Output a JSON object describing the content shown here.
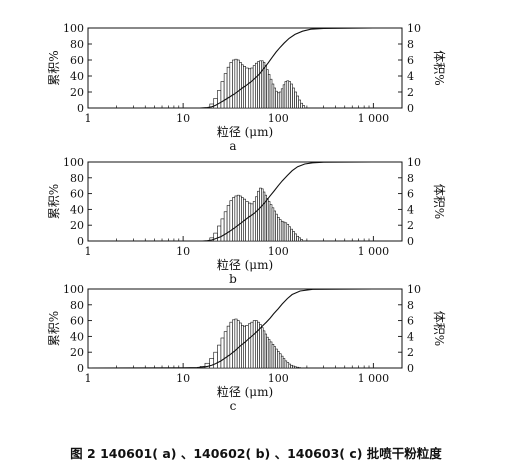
{
  "caption": "图 2 140601( a) 、140602( b) 、140603( c) 批喷干粉粒度",
  "chart_data": [
    {
      "type": "bar",
      "panel_label": "a",
      "xlabel": "粒径 (μm)",
      "ylabel_left": "累积%",
      "ylabel_right": "体积%",
      "x_scale": "log",
      "xlim": [
        1,
        2000
      ],
      "ylim_left": [
        0,
        100
      ],
      "ylim_right": [
        0,
        10
      ],
      "x_ticks": [
        1,
        10,
        100,
        1000
      ],
      "x_tick_labels": [
        "1",
        "10",
        "100",
        "1 000"
      ],
      "y_ticks_left": [
        "0",
        "20",
        "40",
        "60",
        "80",
        "100"
      ],
      "y_ticks_right": [
        "0",
        "2",
        "4",
        "6",
        "8",
        "10"
      ],
      "grid": false,
      "series": [
        {
          "kind": "bars",
          "axis": "right",
          "x": [
            20,
            22,
            24,
            26,
            28,
            30,
            32,
            34,
            36,
            38,
            40,
            42,
            44,
            47,
            50,
            53,
            56,
            59,
            62,
            65,
            68,
            71,
            74,
            77,
            80,
            84,
            88,
            92,
            96,
            100,
            105,
            110,
            115,
            120,
            126,
            132,
            138,
            145,
            152,
            160,
            168,
            176,
            185
          ],
          "values": [
            0.5,
            1.2,
            2.2,
            3.3,
            4.3,
            5.1,
            5.7,
            6.0,
            6.1,
            6.0,
            5.7,
            5.4,
            5.2,
            5.0,
            4.9,
            5.0,
            5.3,
            5.6,
            5.8,
            5.9,
            5.9,
            5.7,
            5.3,
            4.8,
            4.2,
            3.6,
            3.0,
            2.5,
            2.1,
            1.9,
            2.0,
            2.4,
            2.9,
            3.3,
            3.4,
            3.3,
            3.0,
            2.5,
            2.0,
            1.5,
            1.0,
            0.6,
            0.3
          ]
        },
        {
          "kind": "line",
          "axis": "left",
          "x": [
            1,
            15,
            18,
            20,
            22,
            24,
            27,
            30,
            34,
            38,
            42,
            47,
            52,
            58,
            64,
            70,
            78,
            86,
            95,
            105,
            115,
            130,
            150,
            180,
            220,
            300,
            1000,
            1500
          ],
          "values": [
            0,
            0,
            0.5,
            1.5,
            3.5,
            6,
            9.5,
            13,
            17,
            21,
            25,
            29,
            33,
            38,
            43,
            49,
            56,
            63,
            70,
            76,
            81,
            87,
            92,
            96,
            98.5,
            99.5,
            100,
            100
          ]
        }
      ]
    },
    {
      "type": "bar",
      "panel_label": "b",
      "xlabel": "粒径 (μm)",
      "ylabel_left": "累积%",
      "ylabel_right": "体积%",
      "x_scale": "log",
      "xlim": [
        1,
        2000
      ],
      "ylim_left": [
        0,
        100
      ],
      "ylim_right": [
        0,
        10
      ],
      "x_ticks": [
        1,
        10,
        100,
        1000
      ],
      "x_tick_labels": [
        "1",
        "10",
        "100",
        "1 000"
      ],
      "y_ticks_left": [
        "0",
        "20",
        "40",
        "60",
        "80",
        "100"
      ],
      "y_ticks_right": [
        "0",
        "2",
        "4",
        "6",
        "8",
        "10"
      ],
      "grid": false,
      "series": [
        {
          "kind": "bars",
          "axis": "right",
          "x": [
            20,
            22,
            24,
            26,
            28,
            30,
            32,
            34,
            36,
            38,
            40,
            42,
            44,
            47,
            50,
            53,
            56,
            59,
            62,
            65,
            68,
            71,
            74,
            77,
            80,
            84,
            88,
            92,
            96,
            100,
            105,
            110,
            115,
            120,
            126,
            132,
            138,
            145,
            152,
            160,
            168,
            176
          ],
          "values": [
            0.4,
            1.0,
            1.9,
            2.8,
            3.7,
            4.5,
            5.1,
            5.5,
            5.7,
            5.8,
            5.7,
            5.5,
            5.3,
            5.0,
            4.8,
            4.7,
            5.0,
            5.6,
            6.3,
            6.7,
            6.6,
            6.2,
            5.8,
            5.4,
            5.0,
            4.6,
            4.2,
            3.8,
            3.4,
            3.0,
            2.7,
            2.5,
            2.4,
            2.3,
            2.1,
            1.8,
            1.5,
            1.2,
            0.9,
            0.6,
            0.4,
            0.2
          ]
        },
        {
          "kind": "line",
          "axis": "left",
          "x": [
            1,
            16,
            18,
            20,
            22,
            25,
            28,
            32,
            36,
            40,
            45,
            50,
            56,
            62,
            68,
            75,
            82,
            90,
            100,
            110,
            125,
            140,
            160,
            190,
            230,
            300,
            1000,
            1500
          ],
          "values": [
            0,
            0,
            0.4,
            1.2,
            3,
            5.5,
            9,
            13.5,
            18,
            22,
            27,
            31,
            35,
            40,
            45,
            51,
            57,
            63,
            70,
            76,
            83,
            89,
            94,
            97.5,
            99,
            99.8,
            100,
            100
          ]
        }
      ]
    },
    {
      "type": "bar",
      "panel_label": "c",
      "xlabel": "粒径 (μm)",
      "ylabel_left": "累积%",
      "ylabel_right": "体积%",
      "x_scale": "log",
      "xlim": [
        1,
        2000
      ],
      "ylim_left": [
        0,
        100
      ],
      "ylim_right": [
        0,
        10
      ],
      "x_ticks": [
        1,
        10,
        100,
        1000
      ],
      "x_tick_labels": [
        "1",
        "10",
        "100",
        "1 000"
      ],
      "y_ticks_left": [
        "0",
        "20",
        "40",
        "60",
        "80",
        "100"
      ],
      "y_ticks_right": [
        "0",
        "2",
        "4",
        "6",
        "8",
        "10"
      ],
      "grid": false,
      "series": [
        {
          "kind": "bars",
          "axis": "right",
          "x": [
            16,
            18,
            20,
            22,
            24,
            26,
            28,
            30,
            32,
            34,
            36,
            38,
            40,
            42,
            44,
            47,
            50,
            53,
            56,
            59,
            62,
            65,
            68,
            71,
            74,
            77,
            80,
            84,
            88,
            92,
            96,
            100,
            105,
            110,
            115,
            120,
            126,
            132,
            138,
            145,
            152,
            160,
            168,
            176
          ],
          "values": [
            0.2,
            0.6,
            1.2,
            2.0,
            2.9,
            3.8,
            4.6,
            5.3,
            5.8,
            6.1,
            6.2,
            6.0,
            5.7,
            5.4,
            5.3,
            5.4,
            5.6,
            5.8,
            6.0,
            6.0,
            5.8,
            5.5,
            5.1,
            4.7,
            4.3,
            3.9,
            3.6,
            3.3,
            3.0,
            2.7,
            2.4,
            2.1,
            1.8,
            1.5,
            1.2,
            0.9,
            0.7,
            0.5,
            0.35,
            0.25,
            0.15,
            0.1,
            0.05,
            0.02
          ]
        },
        {
          "kind": "line",
          "axis": "left",
          "x": [
            1,
            10,
            14,
            16,
            18,
            20,
            22,
            25,
            28,
            32,
            36,
            40,
            45,
            50,
            56,
            62,
            68,
            75,
            82,
            90,
            100,
            110,
            125,
            140,
            170,
            230,
            1000,
            1500
          ],
          "values": [
            0,
            0.3,
            0.6,
            1,
            2,
            3.5,
            5.5,
            9,
            13,
            18,
            23,
            28,
            33,
            38,
            43,
            48,
            53,
            58,
            63,
            69,
            75,
            81,
            88,
            93,
            97.5,
            99.6,
            100,
            100
          ]
        }
      ]
    }
  ]
}
